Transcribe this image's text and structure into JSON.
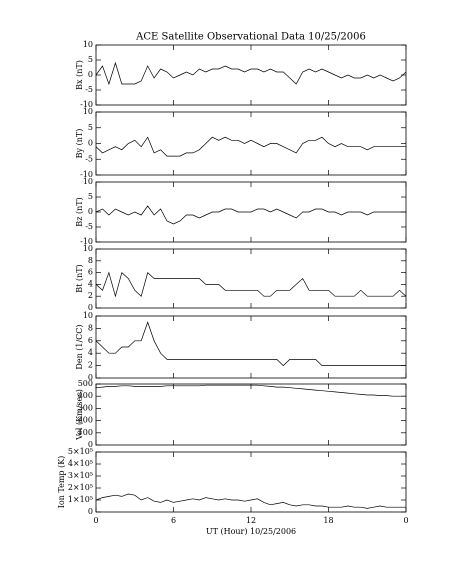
{
  "chart_data": [
    {
      "type": "line",
      "title": "ACE Satellite Observational Data   10/25/2006",
      "ylabel": "Bx (nT)",
      "color": "#000000",
      "x": [
        0,
        0.5,
        1,
        1.5,
        2,
        2.5,
        3,
        3.5,
        4,
        4.5,
        5,
        5.5,
        6,
        6.5,
        7,
        7.5,
        8,
        8.5,
        9,
        9.5,
        10,
        10.5,
        11,
        11.5,
        12,
        12.5,
        13,
        13.5,
        14,
        14.5,
        15,
        15.5,
        16,
        16.5,
        17,
        17.5,
        18,
        18.5,
        19,
        19.5,
        20,
        20.5,
        21,
        21.5,
        22,
        22.5,
        23,
        23.5,
        24
      ],
      "values": [
        0,
        3,
        -3,
        4,
        -3,
        -3,
        -3,
        -2,
        3,
        -1,
        2,
        1,
        -1,
        0,
        1,
        0,
        2,
        1,
        2,
        2,
        3,
        2,
        2,
        1,
        2,
        2,
        1,
        2,
        1,
        1,
        -1,
        -3,
        1,
        2,
        1,
        2,
        1,
        0,
        -1,
        0,
        -1,
        -1,
        0,
        -1,
        0,
        -1,
        -2,
        -1,
        1
      ],
      "ylim": [
        -10,
        10
      ],
      "yticks": [
        -10,
        -5,
        0,
        5,
        10
      ]
    },
    {
      "type": "line",
      "ylabel": "By (nT)",
      "color": "#000000",
      "x": [
        0,
        0.5,
        1,
        1.5,
        2,
        2.5,
        3,
        3.5,
        4,
        4.5,
        5,
        5.5,
        6,
        6.5,
        7,
        7.5,
        8,
        8.5,
        9,
        9.5,
        10,
        10.5,
        11,
        11.5,
        12,
        12.5,
        13,
        13.5,
        14,
        14.5,
        15,
        15.5,
        16,
        16.5,
        17,
        17.5,
        18,
        18.5,
        19,
        19.5,
        20,
        20.5,
        21,
        21.5,
        22,
        22.5,
        23,
        23.5,
        24
      ],
      "values": [
        -1,
        -3,
        -2,
        -1,
        -2,
        0,
        1,
        -1,
        2,
        -3,
        -2,
        -4,
        -4,
        -4,
        -3,
        -3,
        -2,
        0,
        2,
        1,
        2,
        1,
        1,
        0,
        1,
        0,
        -1,
        0,
        0,
        -1,
        -2,
        -3,
        0,
        1,
        1,
        2,
        0,
        -1,
        0,
        -1,
        -1,
        -1,
        -2,
        -1,
        -1,
        -1,
        -1,
        -1,
        -1
      ],
      "ylim": [
        -10,
        10
      ],
      "yticks": [
        -10,
        -5,
        0,
        5,
        10
      ]
    },
    {
      "type": "line",
      "ylabel": "Bz (nT)",
      "color": "#000000",
      "x": [
        0,
        0.5,
        1,
        1.5,
        2,
        2.5,
        3,
        3.5,
        4,
        4.5,
        5,
        5.5,
        6,
        6.5,
        7,
        7.5,
        8,
        8.5,
        9,
        9.5,
        10,
        10.5,
        11,
        11.5,
        12,
        12.5,
        13,
        13.5,
        14,
        14.5,
        15,
        15.5,
        16,
        16.5,
        17,
        17.5,
        18,
        18.5,
        19,
        19.5,
        20,
        20.5,
        21,
        21.5,
        22,
        22.5,
        23,
        23.5,
        24
      ],
      "values": [
        0,
        1,
        -1,
        1,
        0,
        -1,
        0,
        -1,
        2,
        -1,
        1,
        -3,
        -4,
        -3,
        -1,
        -1,
        -2,
        -1,
        0,
        0,
        1,
        1,
        0,
        0,
        0,
        1,
        1,
        0,
        1,
        0,
        -1,
        -2,
        0,
        0,
        1,
        1,
        0,
        0,
        -1,
        0,
        0,
        0,
        -1,
        0,
        0,
        0,
        0,
        0,
        0
      ],
      "ylim": [
        -10,
        10
      ],
      "yticks": [
        -10,
        -5,
        0,
        5,
        10
      ]
    },
    {
      "type": "line",
      "ylabel": "Bt (nT)",
      "color": "#000000",
      "x": [
        0,
        0.5,
        1,
        1.5,
        2,
        2.5,
        3,
        3.5,
        4,
        4.5,
        5,
        5.5,
        6,
        6.5,
        7,
        7.5,
        8,
        8.5,
        9,
        9.5,
        10,
        10.5,
        11,
        11.5,
        12,
        12.5,
        13,
        13.5,
        14,
        14.5,
        15,
        15.5,
        16,
        16.5,
        17,
        17.5,
        18,
        18.5,
        19,
        19.5,
        20,
        20.5,
        21,
        21.5,
        22,
        22.5,
        23,
        23.5,
        24
      ],
      "values": [
        4,
        3,
        6,
        2,
        6,
        5,
        3,
        2,
        6,
        5,
        5,
        5,
        5,
        5,
        5,
        5,
        5,
        4,
        4,
        4,
        3,
        3,
        3,
        3,
        3,
        3,
        2,
        2,
        3,
        3,
        3,
        4,
        5,
        3,
        3,
        3,
        3,
        2,
        2,
        2,
        2,
        3,
        2,
        2,
        2,
        2,
        2,
        3,
        2
      ],
      "ylim": [
        0,
        10
      ],
      "yticks": [
        0,
        2,
        4,
        6,
        8,
        10
      ]
    },
    {
      "type": "line",
      "ylabel": "Den (1/CC)",
      "color": "#000000",
      "x": [
        0,
        0.5,
        1,
        1.5,
        2,
        2.5,
        3,
        3.5,
        4,
        4.5,
        5,
        5.5,
        6,
        6.5,
        7,
        7.5,
        8,
        8.5,
        9,
        9.5,
        10,
        10.5,
        11,
        11.5,
        12,
        12.5,
        13,
        13.5,
        14,
        14.5,
        15,
        15.5,
        16,
        16.5,
        17,
        17.5,
        18,
        18.5,
        19,
        19.5,
        20,
        20.5,
        21,
        21.5,
        22,
        22.5,
        23,
        23.5,
        24
      ],
      "values": [
        6,
        5,
        4,
        4,
        5,
        5,
        6,
        6,
        9,
        6,
        4,
        3,
        3,
        3,
        3,
        3,
        3,
        3,
        3,
        3,
        3,
        3,
        3,
        3,
        3,
        3,
        3,
        3,
        3,
        2,
        3,
        3,
        3,
        3,
        3,
        2,
        2,
        2,
        2,
        2,
        2,
        2,
        2,
        2,
        2,
        2,
        2,
        2,
        2
      ],
      "ylim": [
        0,
        10
      ],
      "yticks": [
        0,
        2,
        4,
        6,
        8,
        10
      ]
    },
    {
      "type": "line",
      "ylabel": "Vel (Km/sec)",
      "color": "#000000",
      "x": [
        0,
        0.5,
        1,
        1.5,
        2,
        2.5,
        3,
        3.5,
        4,
        4.5,
        5,
        5.5,
        6,
        6.5,
        7,
        7.5,
        8,
        8.5,
        9,
        9.5,
        10,
        10.5,
        11,
        11.5,
        12,
        12.5,
        13,
        13.5,
        14,
        14.5,
        15,
        15.5,
        16,
        16.5,
        17,
        17.5,
        18,
        18.5,
        19,
        19.5,
        20,
        20.5,
        21,
        21.5,
        22,
        22.5,
        23,
        23.5,
        24
      ],
      "values": [
        470,
        475,
        480,
        480,
        485,
        485,
        480,
        480,
        480,
        480,
        480,
        485,
        485,
        485,
        485,
        485,
        485,
        490,
        490,
        490,
        490,
        490,
        490,
        490,
        490,
        490,
        485,
        480,
        475,
        475,
        470,
        465,
        460,
        455,
        450,
        445,
        440,
        435,
        430,
        425,
        420,
        415,
        410,
        410,
        405,
        405,
        400,
        400,
        400
      ],
      "ylim": [
        0,
        500
      ],
      "yticks": [
        0,
        100,
        200,
        300,
        400,
        500
      ]
    },
    {
      "type": "line",
      "ylabel": "Ion Temp (K)",
      "xlabel": "UT (Hour)   10/25/2006",
      "color": "#000000",
      "x": [
        0,
        0.5,
        1,
        1.5,
        2,
        2.5,
        3,
        3.5,
        4,
        4.5,
        5,
        5.5,
        6,
        6.5,
        7,
        7.5,
        8,
        8.5,
        9,
        9.5,
        10,
        10.5,
        11,
        11.5,
        12,
        12.5,
        13,
        13.5,
        14,
        14.5,
        15,
        15.5,
        16,
        16.5,
        17,
        17.5,
        18,
        18.5,
        19,
        19.5,
        20,
        20.5,
        21,
        21.5,
        22,
        22.5,
        23,
        23.5,
        24
      ],
      "values": [
        100000,
        120000,
        130000,
        140000,
        130000,
        150000,
        140000,
        100000,
        120000,
        90000,
        80000,
        100000,
        80000,
        90000,
        100000,
        110000,
        100000,
        120000,
        110000,
        100000,
        110000,
        100000,
        100000,
        90000,
        100000,
        110000,
        80000,
        60000,
        70000,
        80000,
        60000,
        50000,
        60000,
        60000,
        50000,
        50000,
        40000,
        40000,
        40000,
        50000,
        40000,
        40000,
        30000,
        40000,
        50000,
        40000,
        40000,
        40000,
        40000
      ],
      "ylim": [
        0,
        500000
      ],
      "yticks": [
        0,
        {
          "value": 100000,
          "label": "1×10⁵"
        },
        {
          "value": 200000,
          "label": "2×10⁵"
        },
        {
          "value": 300000,
          "label": "3×10⁵"
        },
        {
          "value": 400000,
          "label": "4×10⁵"
        },
        {
          "value": 500000,
          "label": "5×10⁵"
        }
      ],
      "xlim": [
        0,
        24
      ],
      "xticks": [
        0,
        6,
        12,
        18,
        {
          "value": 24,
          "label": "0"
        }
      ]
    }
  ]
}
